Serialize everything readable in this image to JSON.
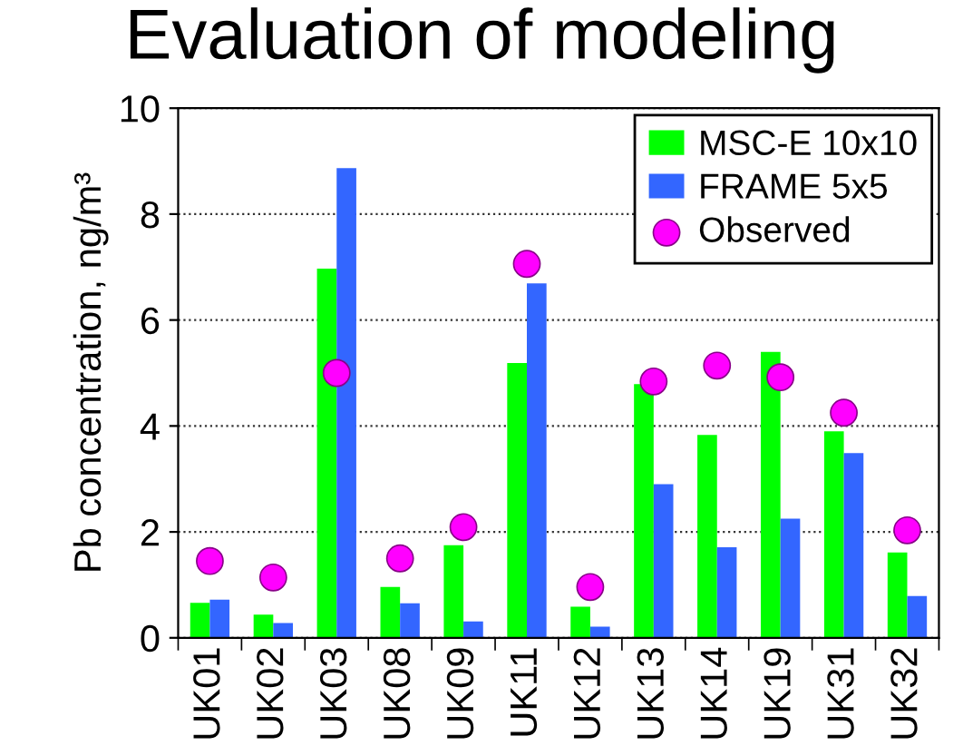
{
  "chart_data": {
    "type": "bar",
    "title": "Evaluation of modeling",
    "ylabel": "Pb concentration, ng/m³",
    "categories": [
      "UK01",
      "UK02",
      "UK03",
      "UK08",
      "UK09",
      "UK11",
      "UK12",
      "UK13",
      "UK14",
      "UK19",
      "UK31",
      "UK32"
    ],
    "series": [
      {
        "name": "MSC-E 10x10",
        "color": "#00ff00",
        "values": [
          0.66,
          0.44,
          6.97,
          0.96,
          1.75,
          5.19,
          0.59,
          4.79,
          3.83,
          5.4,
          3.9,
          1.61
        ]
      },
      {
        "name": "FRAME 5x5",
        "color": "#3366ff",
        "values": [
          0.72,
          0.28,
          8.87,
          0.65,
          0.31,
          6.69,
          0.21,
          2.9,
          1.71,
          2.25,
          3.49,
          0.79
        ]
      },
      {
        "name": "Observed",
        "type": "scatter",
        "marker": "circle",
        "color": "#ff00ff",
        "values": [
          1.45,
          1.14,
          5.0,
          1.5,
          2.09,
          7.06,
          0.96,
          4.84,
          5.14,
          4.92,
          4.25,
          2.03
        ]
      }
    ],
    "ylim": [
      0,
      10
    ],
    "yticks": [
      0,
      2,
      4,
      6,
      8,
      10
    ],
    "grid": "y",
    "legend": "top right"
  }
}
